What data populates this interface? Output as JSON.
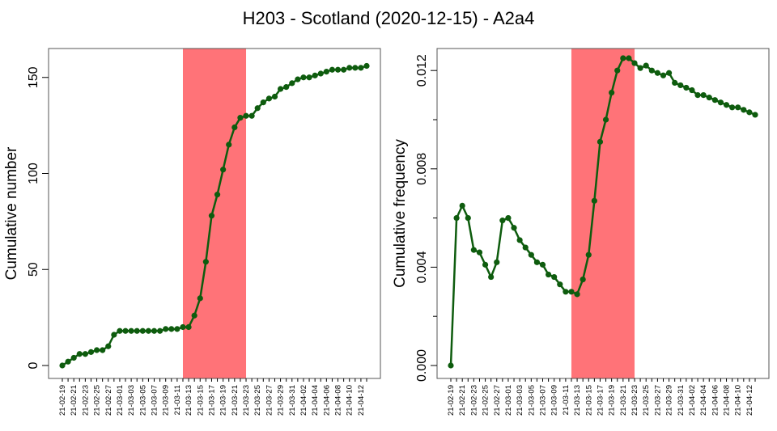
{
  "title": "H203 - Scotland (2020-12-15) - A2a4",
  "colors": {
    "line": "#0e5c0e",
    "highlight": "#ff7378",
    "frame": "#555555"
  },
  "chart_data": [
    {
      "type": "line",
      "ylabel": "Cumulative number",
      "ylim": [
        0,
        160
      ],
      "yticks": [
        0,
        50,
        100,
        150
      ],
      "x": [
        "21-02-19",
        "21-02-20",
        "21-02-21",
        "21-02-22",
        "21-02-23",
        "21-02-24",
        "21-02-25",
        "21-02-26",
        "21-02-27",
        "21-02-28",
        "21-03-01",
        "21-03-02",
        "21-03-03",
        "21-03-04",
        "21-03-05",
        "21-03-06",
        "21-03-07",
        "21-03-08",
        "21-03-09",
        "21-03-10",
        "21-03-11",
        "21-03-12",
        "21-03-13",
        "21-03-14",
        "21-03-15",
        "21-03-16",
        "21-03-17",
        "21-03-18",
        "21-03-19",
        "21-03-20",
        "21-03-21",
        "21-03-22",
        "21-03-23",
        "21-03-24",
        "21-03-25",
        "21-03-26",
        "21-03-27",
        "21-03-28",
        "21-03-29",
        "21-03-30",
        "21-03-31",
        "21-04-01",
        "21-04-02",
        "21-04-03",
        "21-04-04",
        "21-04-05",
        "21-04-06",
        "21-04-07",
        "21-04-08",
        "21-04-09",
        "21-04-10",
        "21-04-11",
        "21-04-12",
        "21-04-13"
      ],
      "xtick_labels": [
        "21-02-19",
        "21-02-21",
        "21-02-23",
        "21-02-25",
        "21-02-27",
        "21-03-01",
        "21-03-03",
        "21-03-05",
        "21-03-07",
        "21-03-09",
        "21-03-11",
        "21-03-13",
        "21-03-15",
        "21-03-17",
        "21-03-19",
        "21-03-21",
        "21-03-23",
        "21-03-25",
        "21-03-27",
        "21-03-29",
        "21-03-31",
        "21-04-02",
        "21-04-04",
        "21-04-06",
        "21-04-08",
        "21-04-10",
        "21-04-12"
      ],
      "values": [
        0,
        2,
        4,
        6,
        6,
        7,
        8,
        8,
        10,
        16,
        18,
        18,
        18,
        18,
        18,
        18,
        18,
        18,
        19,
        19,
        19,
        20,
        20,
        26,
        35,
        54,
        78,
        89,
        102,
        115,
        124,
        129,
        130,
        130,
        134,
        137,
        139,
        140,
        144,
        145,
        147,
        149,
        150,
        150,
        151,
        152,
        153,
        154,
        154,
        154,
        155,
        155,
        155,
        156
      ],
      "highlight": [
        "21-03-12",
        "21-03-23"
      ]
    },
    {
      "type": "line",
      "ylabel": "Cumulative frequency",
      "ylim": [
        0,
        0.0125
      ],
      "yticks": [
        "0.000",
        "0.004",
        "0.008",
        "0.012"
      ],
      "ytick_values": [
        0,
        0.004,
        0.008,
        0.012
      ],
      "x": [
        "21-02-19",
        "21-02-20",
        "21-02-21",
        "21-02-22",
        "21-02-23",
        "21-02-24",
        "21-02-25",
        "21-02-26",
        "21-02-27",
        "21-02-28",
        "21-03-01",
        "21-03-02",
        "21-03-03",
        "21-03-04",
        "21-03-05",
        "21-03-06",
        "21-03-07",
        "21-03-08",
        "21-03-09",
        "21-03-10",
        "21-03-11",
        "21-03-12",
        "21-03-13",
        "21-03-14",
        "21-03-15",
        "21-03-16",
        "21-03-17",
        "21-03-18",
        "21-03-19",
        "21-03-20",
        "21-03-21",
        "21-03-22",
        "21-03-23",
        "21-03-24",
        "21-03-25",
        "21-03-26",
        "21-03-27",
        "21-03-28",
        "21-03-29",
        "21-03-30",
        "21-03-31",
        "21-04-01",
        "21-04-02",
        "21-04-03",
        "21-04-04",
        "21-04-05",
        "21-04-06",
        "21-04-07",
        "21-04-08",
        "21-04-09",
        "21-04-10",
        "21-04-11",
        "21-04-12",
        "21-04-13"
      ],
      "xtick_labels": [
        "21-02-19",
        "21-02-21",
        "21-02-23",
        "21-02-25",
        "21-02-27",
        "21-03-01",
        "21-03-03",
        "21-03-05",
        "21-03-07",
        "21-03-09",
        "21-03-11",
        "21-03-13",
        "21-03-15",
        "21-03-17",
        "21-03-19",
        "21-03-21",
        "21-03-23",
        "21-03-25",
        "21-03-27",
        "21-03-29",
        "21-03-31",
        "21-04-02",
        "21-04-04",
        "21-04-06",
        "21-04-08",
        "21-04-10",
        "21-04-12"
      ],
      "values": [
        0,
        0.006,
        0.0065,
        0.006,
        0.0047,
        0.0046,
        0.0041,
        0.0036,
        0.0042,
        0.0059,
        0.006,
        0.0056,
        0.0051,
        0.0048,
        0.0045,
        0.0042,
        0.0041,
        0.0037,
        0.0036,
        0.0033,
        0.003,
        0.003,
        0.0029,
        0.0035,
        0.0045,
        0.0067,
        0.0091,
        0.01,
        0.0111,
        0.012,
        0.0125,
        0.0125,
        0.0123,
        0.0121,
        0.0122,
        0.012,
        0.0119,
        0.0118,
        0.0119,
        0.0115,
        0.0114,
        0.0113,
        0.0112,
        0.011,
        0.011,
        0.0109,
        0.0108,
        0.0107,
        0.0106,
        0.0105,
        0.0105,
        0.0104,
        0.0103,
        0.0102
      ],
      "highlight": [
        "21-03-12",
        "21-03-23"
      ]
    }
  ]
}
